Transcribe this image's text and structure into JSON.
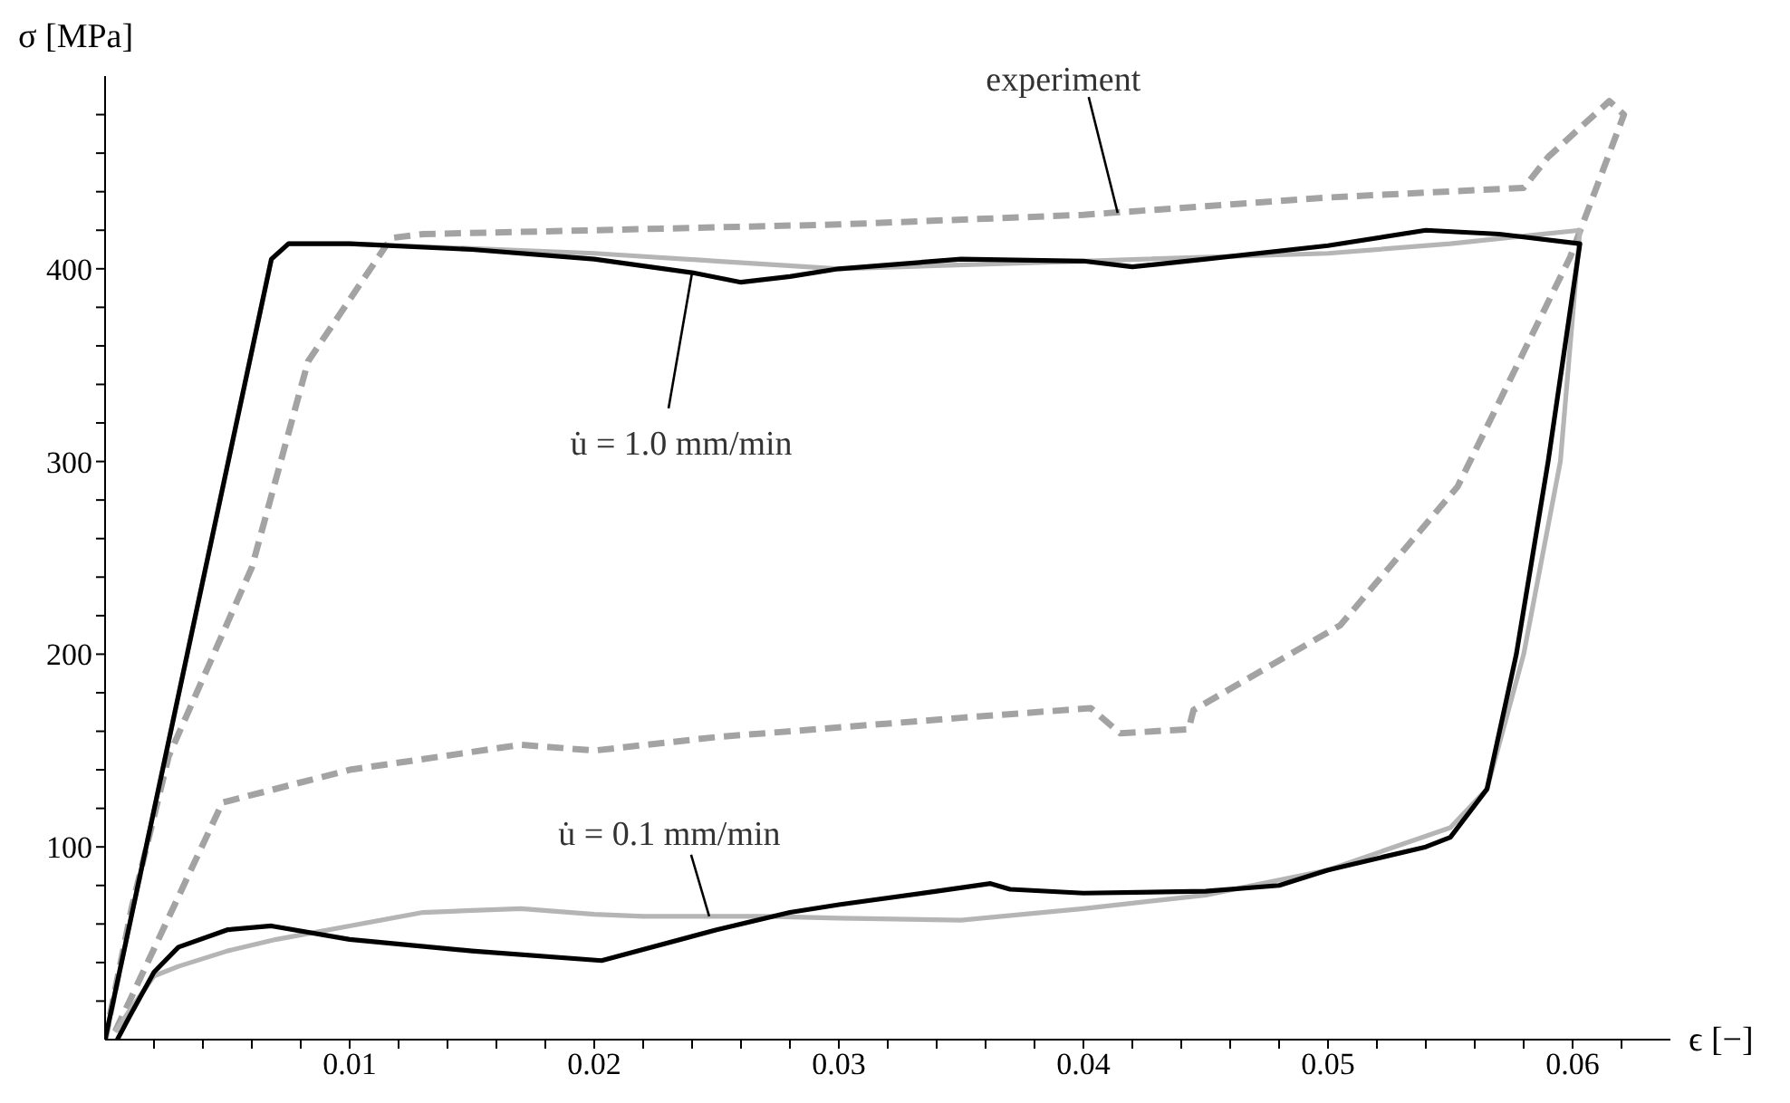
{
  "chart_data": {
    "type": "line",
    "xlabel": "ϵ [−]",
    "ylabel": "σ [MPa]",
    "xlim": [
      0,
      0.064
    ],
    "ylim": [
      0,
      500
    ],
    "xticks": [
      {
        "value": 0.002,
        "label": null
      },
      {
        "value": 0.004,
        "label": null
      },
      {
        "value": 0.006,
        "label": null
      },
      {
        "value": 0.008,
        "label": null
      },
      0.01,
      {
        "value": 0.012,
        "label": null
      },
      {
        "value": 0.014,
        "label": null
      },
      {
        "value": 0.016,
        "label": null
      },
      {
        "value": 0.018,
        "label": null
      },
      0.02,
      {
        "value": 0.022,
        "label": null
      },
      {
        "value": 0.024,
        "label": null
      },
      {
        "value": 0.026,
        "label": null
      },
      {
        "value": 0.028,
        "label": null
      },
      0.03,
      {
        "value": 0.032,
        "label": null
      },
      {
        "value": 0.034,
        "label": null
      },
      {
        "value": 0.036,
        "label": null
      },
      {
        "value": 0.038,
        "label": null
      },
      0.04,
      {
        "value": 0.042,
        "label": null
      },
      {
        "value": 0.044,
        "label": null
      },
      {
        "value": 0.046,
        "label": null
      },
      {
        "value": 0.048,
        "label": null
      },
      0.05,
      {
        "value": 0.052,
        "label": null
      },
      {
        "value": 0.054,
        "label": null
      },
      {
        "value": 0.056,
        "label": null
      },
      {
        "value": 0.058,
        "label": null
      },
      0.06,
      {
        "value": 0.062,
        "label": null
      }
    ],
    "yticks": [
      {
        "value": 20,
        "label": null
      },
      {
        "value": 40,
        "label": null
      },
      {
        "value": 60,
        "label": null
      },
      {
        "value": 80,
        "label": null
      },
      100,
      {
        "value": 120,
        "label": null
      },
      {
        "value": 140,
        "label": null
      },
      {
        "value": 160,
        "label": null
      },
      {
        "value": 180,
        "label": null
      },
      200,
      {
        "value": 220,
        "label": null
      },
      {
        "value": 240,
        "label": null
      },
      {
        "value": 260,
        "label": null
      },
      {
        "value": 280,
        "label": null
      },
      300,
      {
        "value": 320,
        "label": null
      },
      {
        "value": 340,
        "label": null
      },
      {
        "value": 360,
        "label": null
      },
      {
        "value": 380,
        "label": null
      },
      400,
      {
        "value": 420,
        "label": null
      },
      {
        "value": 440,
        "label": null
      },
      {
        "value": 460,
        "label": null
      },
      {
        "value": 480,
        "label": null
      }
    ],
    "grid": false,
    "legend": false,
    "marker": "none",
    "series": [
      {
        "color": "#a3a3a3",
        "line_style": "dashed",
        "x": [
          0,
          0.0011,
          0.0026,
          0.006,
          0.0083,
          0.0117,
          0.013,
          0.02,
          0.03,
          0.04,
          0.05,
          0.058,
          0.059,
          0.0615,
          0.0621,
          0.0599,
          0.0553,
          0.0505,
          0.0445,
          0.0443,
          0.0415,
          0.0403,
          0.035,
          0.03,
          0.025,
          0.02,
          0.017,
          0.01,
          0.0048,
          0.001,
          0.0004
        ],
        "values": [
          0,
          69,
          147,
          245,
          352,
          416,
          418,
          420,
          423,
          428,
          437,
          442,
          458,
          487,
          480,
          406,
          287,
          215,
          171,
          161,
          159,
          172,
          167,
          162,
          157,
          150,
          153,
          140,
          123,
          20,
          4
        ]
      },
      {
        "color": "#b5b5b5",
        "line_style": "solid",
        "x": [
          0,
          0.0068,
          0.0075,
          0.01,
          0.02,
          0.025,
          0.03,
          0.04,
          0.05,
          0.055,
          0.0603,
          0.0595,
          0.058,
          0.0565,
          0.055,
          0.05,
          0.045,
          0.04,
          0.035,
          0.03,
          0.027,
          0.022,
          0.02,
          0.017,
          0.015,
          0.013,
          0.01,
          0.007,
          0.005,
          0.003,
          0.002,
          0.001,
          0.0004
        ],
        "values": [
          0,
          405,
          413,
          413,
          408,
          404,
          400,
          404,
          408,
          413,
          420,
          300,
          200,
          130,
          110,
          88,
          75,
          68,
          62,
          63,
          64,
          64,
          65,
          68,
          67,
          66,
          59,
          52,
          46,
          38,
          33,
          15,
          4
        ]
      },
      {
        "color": "#000000",
        "line_style": "solid",
        "x": [
          0,
          0.0068,
          0.0075,
          0.01,
          0.015,
          0.02,
          0.024,
          0.026,
          0.028,
          0.03,
          0.035,
          0.04,
          0.042,
          0.045,
          0.05,
          0.054,
          0.057,
          0.0603,
          0.059,
          0.0577,
          0.0565,
          0.055,
          0.054,
          0.05,
          0.048,
          0.045,
          0.04,
          0.037,
          0.0362,
          0.034,
          0.03,
          0.028,
          0.025,
          0.0203,
          0.015,
          0.01,
          0.0068,
          0.005,
          0.003,
          0.002,
          0.001,
          0.0005
        ],
        "values": [
          0,
          405,
          413,
          413,
          410,
          405,
          398,
          393,
          396,
          400,
          405,
          404,
          401,
          405,
          412,
          420,
          418,
          413,
          300,
          200,
          130,
          105,
          100,
          88,
          80,
          77,
          76,
          78,
          81,
          77,
          70,
          66,
          57,
          41,
          46,
          52,
          59,
          57,
          48,
          35,
          12,
          0
        ]
      }
    ],
    "annotations": [
      {
        "text": "experiment",
        "x": 0.0414,
        "y": 429
      },
      {
        "text": "u̇ = 1.0 mm/min",
        "x": 0.024,
        "y": 398
      },
      {
        "text": "u̇ = 0.1 mm/min",
        "x": 0.0247,
        "y": 64
      }
    ]
  }
}
